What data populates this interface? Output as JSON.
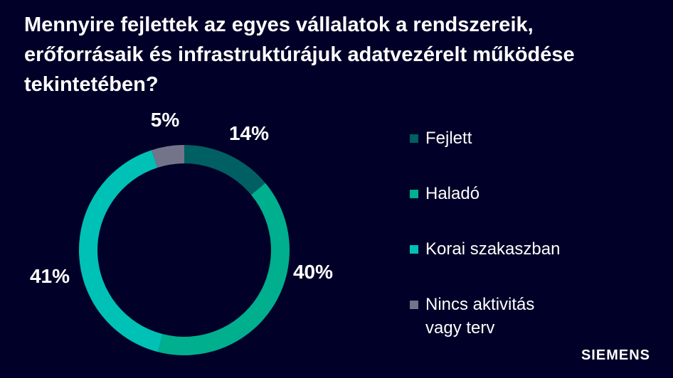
{
  "title": "Mennyire fejlettek az egyes vállalatok a rendszereik, erőforrásaik és infrastruktúrájuk adatvezérelt működése tekintetében?",
  "chart_data": {
    "type": "pie",
    "donut": true,
    "categories": [
      "Fejlett",
      "Haladó",
      "Korai szakaszban",
      "Nincs aktivitás\nvagy terv"
    ],
    "values": [
      14,
      40,
      41,
      5
    ],
    "data_labels": [
      "14%",
      "40%",
      "41%",
      "5%"
    ],
    "colors": [
      "#005f62",
      "#00af8e",
      "#00c1b6",
      "#737389"
    ],
    "legend_placement": "right"
  },
  "brand": {
    "logo_text": "SIEMENS"
  }
}
